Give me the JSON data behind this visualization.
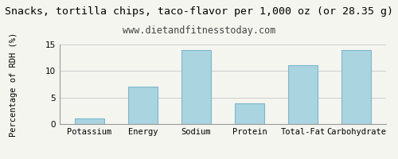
{
  "title": "Snacks, tortilla chips, taco-flavor per 1,000 oz (or 28.35 g)",
  "subtitle": "www.dietandfitnesstoday.com",
  "categories": [
    "Potassium",
    "Energy",
    "Sodium",
    "Protein",
    "Total-Fat",
    "Carbohydrate"
  ],
  "values": [
    1.0,
    7.1,
    13.9,
    3.9,
    11.1,
    13.9
  ],
  "bar_color": "#aad4e0",
  "bar_edge_color": "#7ab8cc",
  "ylabel": "Percentage of RDH (%)",
  "ylim": [
    0,
    15
  ],
  "yticks": [
    0,
    5,
    10,
    15
  ],
  "background_color": "#f5f5f0",
  "grid_color": "#cccccc",
  "title_fontsize": 9.5,
  "subtitle_fontsize": 8.5,
  "ylabel_fontsize": 7.5,
  "tick_fontsize": 7.5
}
